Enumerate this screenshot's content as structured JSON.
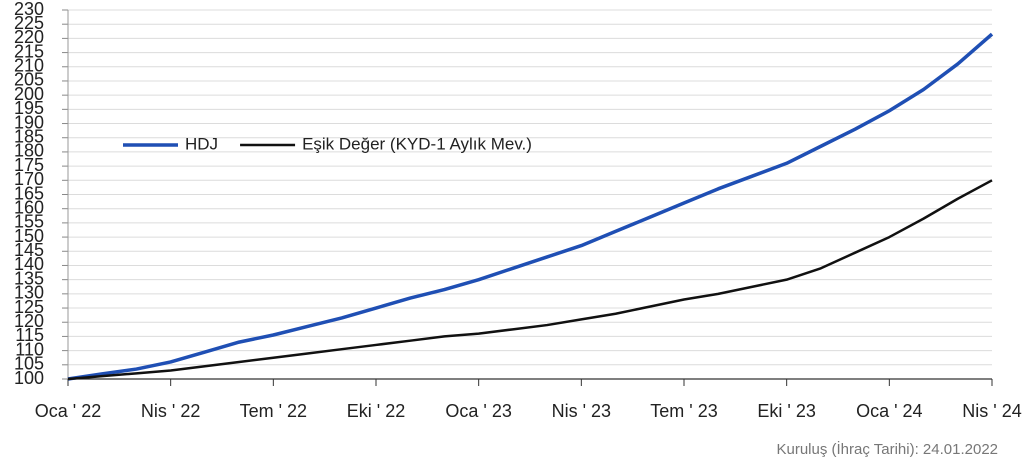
{
  "chart_data": {
    "type": "line",
    "x": [
      "2022-01",
      "2022-02",
      "2022-03",
      "2022-04",
      "2022-05",
      "2022-06",
      "2022-07",
      "2022-08",
      "2022-09",
      "2022-10",
      "2022-11",
      "2022-12",
      "2023-01",
      "2023-02",
      "2023-03",
      "2023-04",
      "2023-05",
      "2023-06",
      "2023-07",
      "2023-08",
      "2023-09",
      "2023-10",
      "2023-11",
      "2023-12",
      "2024-01",
      "2024-02",
      "2024-03",
      "2024-04"
    ],
    "series": [
      {
        "name": "HDJ",
        "color": "#1f4fb4",
        "values": [
          100,
          101.8,
          103.5,
          106,
          109.5,
          113,
          115.5,
          118.5,
          121.5,
          125,
          128.5,
          131.5,
          135,
          139,
          143,
          147,
          152,
          157,
          162,
          167,
          171.5,
          176,
          182,
          188,
          194.5,
          202,
          211,
          221.5
        ]
      },
      {
        "name": "Eşik Değer (KYD-1 Aylık Mev.)",
        "color": "#111111",
        "values": [
          100,
          101,
          102,
          103,
          104.5,
          106,
          107.5,
          109,
          110.5,
          112,
          113.5,
          115,
          116,
          117.5,
          119,
          121,
          123,
          125.5,
          128,
          130,
          132.5,
          135,
          139,
          144.5,
          150,
          156.5,
          163.5,
          170
        ]
      }
    ],
    "ylim": [
      100,
      230
    ],
    "yticks": [
      100,
      105,
      110,
      115,
      120,
      125,
      130,
      135,
      140,
      145,
      150,
      155,
      160,
      165,
      170,
      175,
      180,
      185,
      190,
      195,
      200,
      205,
      210,
      215,
      220,
      225,
      230
    ],
    "xlim": [
      "2022-01",
      "2024-04"
    ],
    "xticks": [
      {
        "value": "2022-01",
        "label": "Oca ' 22"
      },
      {
        "value": "2022-04",
        "label": "Nis ' 22"
      },
      {
        "value": "2022-07",
        "label": "Tem ' 22"
      },
      {
        "value": "2022-10",
        "label": "Eki ' 22"
      },
      {
        "value": "2023-01",
        "label": "Oca ' 23"
      },
      {
        "value": "2023-04",
        "label": "Nis ' 23"
      },
      {
        "value": "2023-07",
        "label": "Tem ' 23"
      },
      {
        "value": "2023-10",
        "label": "Eki ' 23"
      },
      {
        "value": "2024-01",
        "label": "Oca ' 24"
      },
      {
        "value": "2024-04",
        "label": "Nis ' 24"
      }
    ],
    "grid": true,
    "legend": "upper-left",
    "note": "Kuruluş (İhraç Tarihi): 24.01.2022"
  }
}
